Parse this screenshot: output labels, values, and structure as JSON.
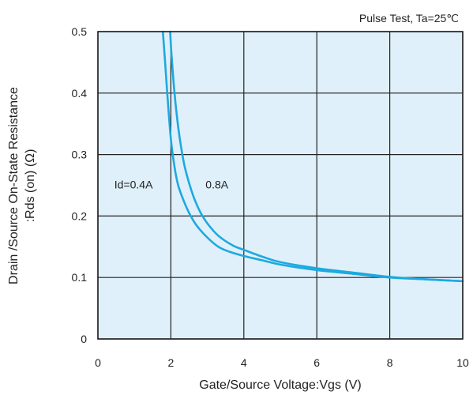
{
  "chart_data": {
    "type": "line",
    "title": "",
    "annotation_top_right": "Pulse Test, Ta=25℃",
    "xlabel": "Gate/Source Voltage:Vgs (V)",
    "ylabel_line1": "Drain /Source On-State Resistance",
    "ylabel_line2": ":Rds (on) (Ω)",
    "xlim": [
      0,
      10
    ],
    "ylim": [
      0,
      0.5
    ],
    "x_ticks": [
      "0",
      "2",
      "4",
      "6",
      "8",
      "10"
    ],
    "y_ticks": [
      "0",
      "0.1",
      "0.2",
      "0.3",
      "0.4",
      "0.5"
    ],
    "grid": true,
    "plot_background": "#dff0fa",
    "line_color": "#1da9e0",
    "series": [
      {
        "name": "Id=0.4A",
        "label_text": "Id=0.4A",
        "label_pos": {
          "x": 0.45,
          "y": 0.245
        },
        "x": [
          1.78,
          1.83,
          1.9,
          2.0,
          2.1,
          2.2,
          2.35,
          2.5,
          2.7,
          3.0,
          3.3,
          3.6,
          4.0,
          4.5,
          5.0,
          6.0,
          7.0,
          8.0,
          9.0,
          10.0
        ],
        "y": [
          0.5,
          0.46,
          0.4,
          0.325,
          0.28,
          0.25,
          0.225,
          0.205,
          0.185,
          0.165,
          0.15,
          0.142,
          0.135,
          0.128,
          0.121,
          0.112,
          0.106,
          0.1,
          0.097,
          0.094
        ]
      },
      {
        "name": "0.8A",
        "label_text": "0.8A",
        "label_pos": {
          "x": 2.95,
          "y": 0.245
        },
        "x": [
          1.98,
          2.02,
          2.1,
          2.2,
          2.3,
          2.4,
          2.6,
          2.8,
          3.0,
          3.3,
          3.7,
          4.0,
          4.5,
          5.0,
          6.0,
          7.0,
          8.0,
          9.0,
          10.0
        ],
        "y": [
          0.5,
          0.46,
          0.4,
          0.345,
          0.305,
          0.275,
          0.235,
          0.207,
          0.188,
          0.168,
          0.152,
          0.145,
          0.134,
          0.125,
          0.115,
          0.108,
          0.101,
          0.097,
          0.094
        ]
      }
    ]
  }
}
